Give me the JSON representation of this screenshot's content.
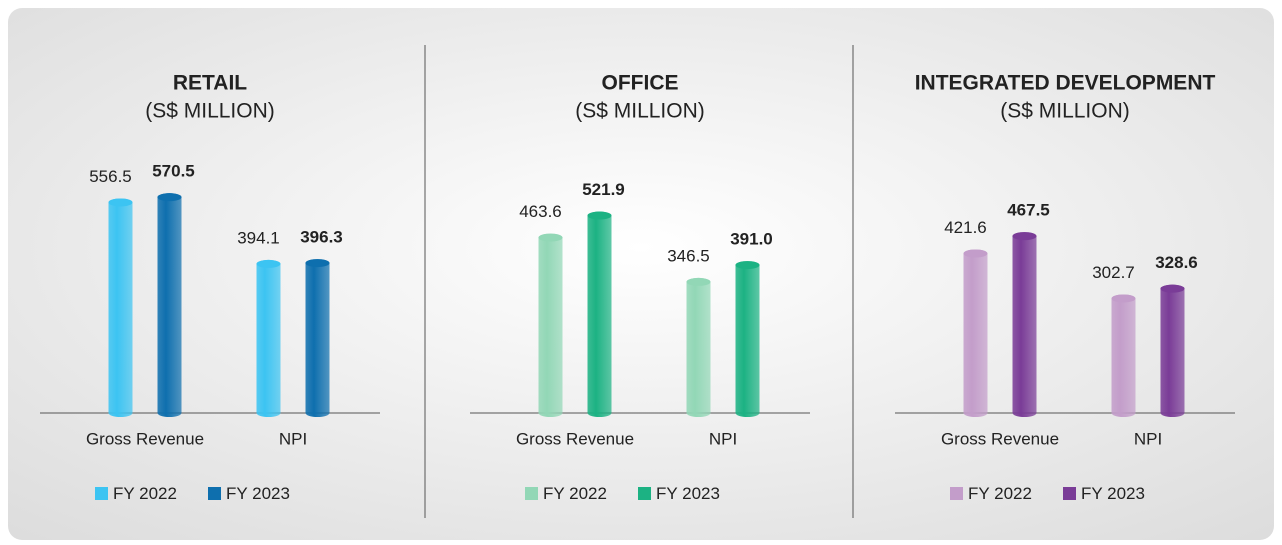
{
  "chart_data": [
    {
      "type": "bar",
      "title": "RETAIL",
      "subtitle": "(S$ MILLION)",
      "categories": [
        "Gross Revenue",
        "NPI"
      ],
      "series": [
        {
          "name": "FY 2022",
          "color": "#3cc4f2",
          "values": [
            556.5,
            394.1
          ]
        },
        {
          "name": "FY 2023",
          "color": "#0e6fae",
          "values": [
            570.5,
            396.3
          ]
        }
      ],
      "ylim": [
        0,
        600
      ]
    },
    {
      "type": "bar",
      "title": "OFFICE",
      "subtitle": "(S$ MILLION)",
      "categories": [
        "Gross Revenue",
        "NPI"
      ],
      "series": [
        {
          "name": "FY 2022",
          "color": "#92d7b6",
          "values": [
            463.6,
            346.5
          ]
        },
        {
          "name": "FY 2023",
          "color": "#1cb283",
          "values": [
            521.9,
            391.0
          ],
          "value_labels": [
            "521.9",
            "391.0"
          ]
        }
      ],
      "ylim": [
        0,
        600
      ]
    },
    {
      "type": "bar",
      "title": "INTEGRATED DEVELOPMENT",
      "subtitle": "(S$ MILLION)",
      "categories": [
        "Gross Revenue",
        "NPI"
      ],
      "series": [
        {
          "name": "FY 2022",
          "color": "#c39dca",
          "values": [
            421.6,
            302.7
          ]
        },
        {
          "name": "FY 2023",
          "color": "#7a3c97",
          "values": [
            467.5,
            328.6
          ]
        }
      ],
      "ylim": [
        0,
        600
      ]
    }
  ]
}
